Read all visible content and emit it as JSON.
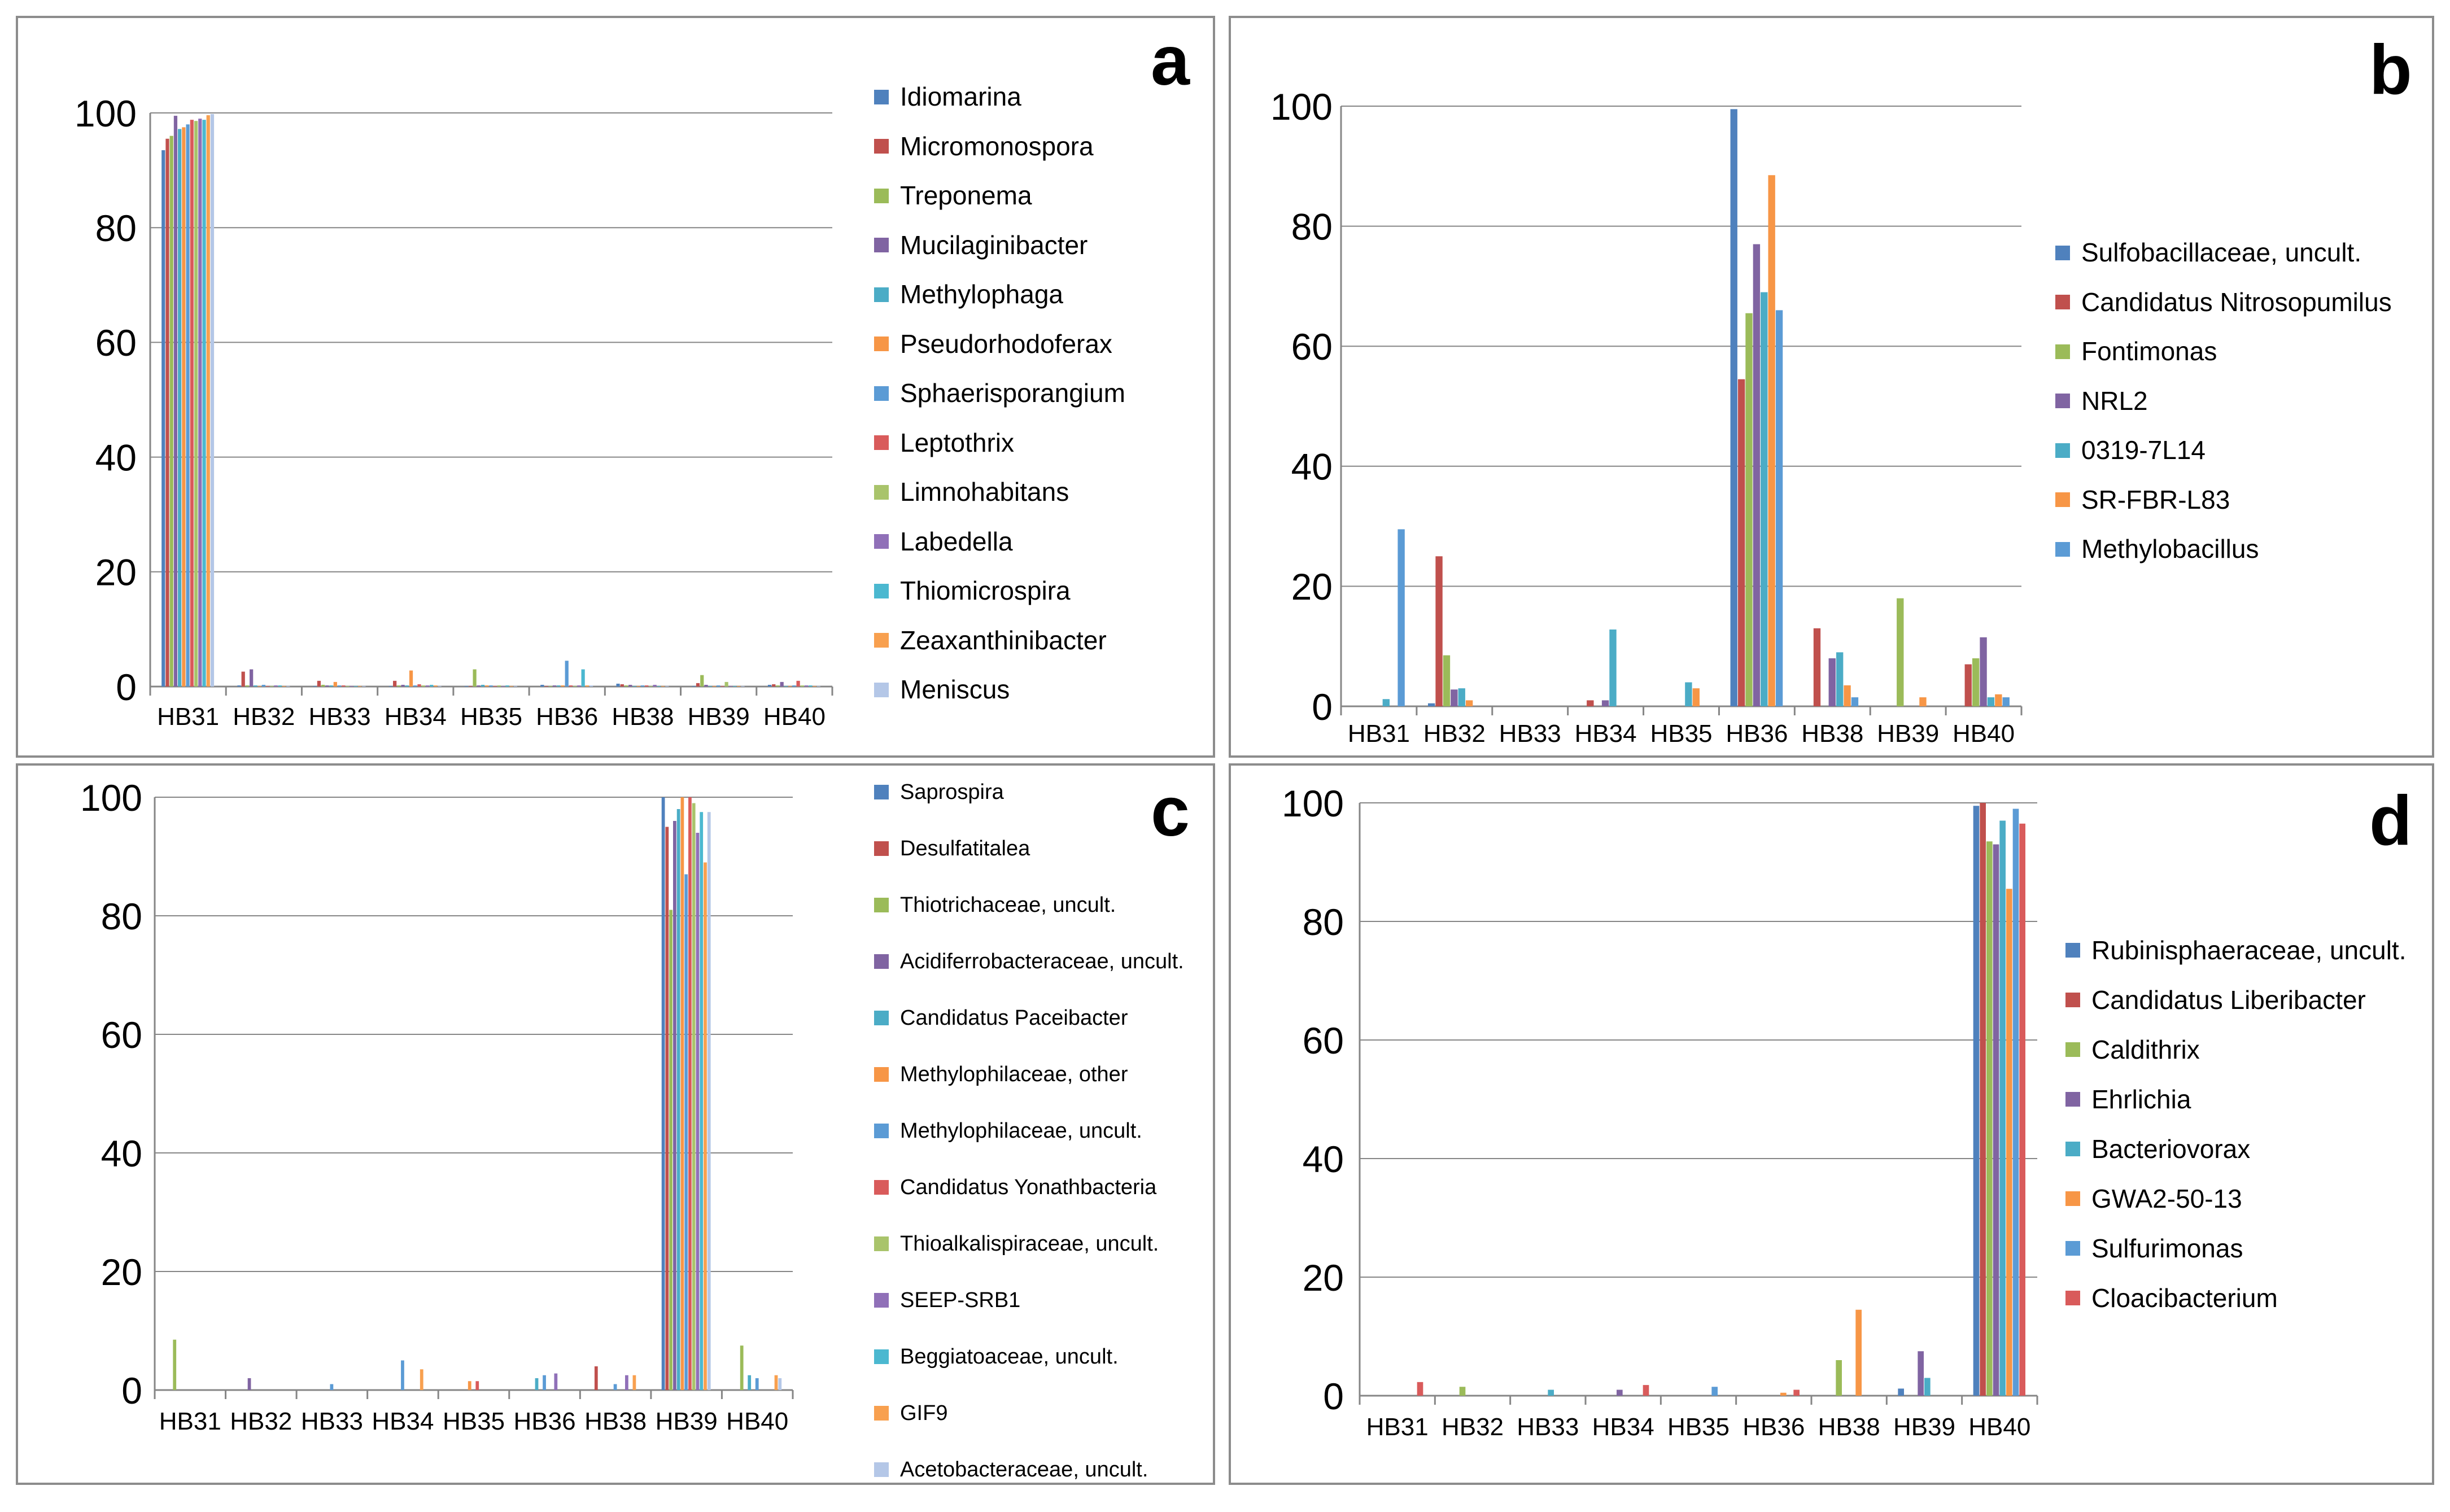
{
  "colors": [
    "#4F81BD",
    "#C0504D",
    "#9BBB59",
    "#8064A2",
    "#4BACC6",
    "#F79646",
    "#5B9BD5",
    "#D95B5B",
    "#A9C46B",
    "#9070B8",
    "#4BB8D0",
    "#F8A04F",
    "#B4C7E7",
    "#E6A6A6"
  ],
  "chart_data": [
    {
      "type": "bar",
      "panel_label": "a",
      "categories": [
        "HB31",
        "HB32",
        "HB33",
        "HB34",
        "HB35",
        "HB36",
        "HB38",
        "HB39",
        "HB40"
      ],
      "ylim": [
        0,
        100
      ],
      "yticks": [
        0,
        20,
        40,
        60,
        80,
        100
      ],
      "grid": true,
      "legend": "right",
      "series": [
        {
          "name": "Idiomarina",
          "values": [
            93.5,
            0.2,
            0.1,
            0.1,
            0.1,
            0.3,
            0.5,
            0.1,
            0.3
          ]
        },
        {
          "name": "Micromonospora",
          "values": [
            95.5,
            2.6,
            1.0,
            1.0,
            0.1,
            0.1,
            0.4,
            0.6,
            0.4
          ]
        },
        {
          "name": "Treponema",
          "values": [
            96,
            0.2,
            0.3,
            0.2,
            3.0,
            0.1,
            0.2,
            2.0,
            0.2
          ]
        },
        {
          "name": "Mucilaginibacter",
          "values": [
            99.5,
            3.0,
            0.2,
            0.3,
            0.2,
            0.2,
            0.3,
            0.3,
            0.8
          ]
        },
        {
          "name": "Methylophaga",
          "values": [
            97.2,
            0.2,
            0.2,
            0.2,
            0.3,
            0.2,
            0.1,
            0.1,
            0.1
          ]
        },
        {
          "name": "Pseudorhodoferax",
          "values": [
            97.5,
            0.1,
            0.8,
            2.8,
            0.2,
            0.2,
            0.1,
            0.1,
            0.1
          ]
        },
        {
          "name": "Sphaerisporangium",
          "values": [
            98,
            0.3,
            0.2,
            0.2,
            0.2,
            4.5,
            0.2,
            0.2,
            0.2
          ]
        },
        {
          "name": "Leptothrix",
          "values": [
            98.8,
            0.1,
            0.2,
            0.4,
            0.1,
            0.2,
            0.2,
            0.1,
            1.0
          ]
        },
        {
          "name": "Limnohabitans",
          "values": [
            98.6,
            0.1,
            0.1,
            0.2,
            0.2,
            0.1,
            0.1,
            0.8,
            0.2
          ]
        },
        {
          "name": "Labedella",
          "values": [
            99.0,
            0.2,
            0.1,
            0.2,
            0.1,
            0.2,
            0.3,
            0.1,
            0.2
          ]
        },
        {
          "name": "Thiomicrospira",
          "values": [
            98.8,
            0.2,
            0.1,
            0.3,
            0.2,
            3.0,
            0.1,
            0.1,
            0.2
          ]
        },
        {
          "name": "Zeaxanthinibacter",
          "values": [
            99.6,
            0.1,
            0.1,
            0.2,
            0.1,
            0.2,
            0.1,
            0.1,
            0.1
          ]
        },
        {
          "name": "Meniscus",
          "values": [
            99.8,
            0.1,
            0.1,
            0.1,
            0.1,
            0.2,
            0.1,
            0.1,
            0.1
          ]
        }
      ]
    },
    {
      "type": "bar",
      "panel_label": "b",
      "categories": [
        "HB31",
        "HB32",
        "HB33",
        "HB34",
        "HB35",
        "HB36",
        "HB38",
        "HB39",
        "HB40"
      ],
      "ylim": [
        0,
        100
      ],
      "yticks": [
        0,
        20,
        40,
        60,
        80,
        100
      ],
      "grid": true,
      "legend": "right",
      "series": [
        {
          "name": "Sulfobacillaceae, uncult.",
          "values": [
            0,
            0.5,
            0,
            0,
            0,
            99.5,
            0,
            0,
            0
          ]
        },
        {
          "name": "Candidatus Nitrosopumilus",
          "values": [
            0,
            25,
            0,
            1,
            0,
            54.5,
            13,
            0,
            7
          ]
        },
        {
          "name": "Fontimonas",
          "values": [
            0,
            8.5,
            0,
            0,
            0,
            65.5,
            0,
            18,
            8
          ]
        },
        {
          "name": "NRL2",
          "values": [
            0,
            2.8,
            0,
            1,
            0,
            77,
            8,
            0,
            11.5
          ]
        },
        {
          "name": "0319-7L14",
          "values": [
            1.2,
            3,
            0,
            12.8,
            4,
            69,
            9,
            0,
            1.5
          ]
        },
        {
          "name": "SR-FBR-L83",
          "values": [
            0,
            1,
            0,
            0,
            3,
            88.5,
            3.5,
            1.5,
            2
          ]
        },
        {
          "name": "Methylobacillus",
          "values": [
            29.5,
            0,
            0,
            0,
            0,
            66,
            1.5,
            0,
            1.5
          ]
        }
      ]
    },
    {
      "type": "bar",
      "panel_label": "c",
      "categories": [
        "HB31",
        "HB32",
        "HB33",
        "HB34",
        "HB35",
        "HB36",
        "HB38",
        "HB39",
        "HB40"
      ],
      "ylim": [
        0,
        100
      ],
      "yticks": [
        0,
        20,
        40,
        60,
        80,
        100
      ],
      "grid": true,
      "legend": "right",
      "series": [
        {
          "name": "Saprospira",
          "values": [
            0,
            0,
            0,
            0,
            0,
            0,
            0,
            100,
            0
          ]
        },
        {
          "name": "Desulfatitalea",
          "values": [
            0,
            0,
            0,
            0,
            0,
            0,
            4,
            95,
            0
          ]
        },
        {
          "name": "Thiotrichaceae, uncult.",
          "values": [
            8.5,
            0,
            0,
            0,
            0,
            0,
            0,
            81,
            7.5
          ]
        },
        {
          "name": "Acidiferrobacteraceae, uncult.",
          "values": [
            0,
            2,
            0,
            0,
            0,
            0,
            0,
            96,
            0
          ]
        },
        {
          "name": "Candidatus Paceibacter",
          "values": [
            0,
            0,
            0,
            0,
            0,
            2,
            0,
            98,
            2.5
          ]
        },
        {
          "name": "Methylophilaceae, other",
          "values": [
            0,
            0,
            0,
            0,
            1.5,
            0,
            0,
            100,
            0
          ]
        },
        {
          "name": "Methylophilaceae, uncult.",
          "values": [
            0,
            0,
            1,
            5,
            0,
            2.5,
            1,
            87,
            2
          ]
        },
        {
          "name": "Candidatus Yonathbacteria",
          "values": [
            0,
            0,
            0,
            0,
            1.5,
            0,
            0,
            100,
            0
          ]
        },
        {
          "name": "Thioalkalispiraceae, uncult.",
          "values": [
            0,
            0,
            0,
            0,
            0,
            0,
            0,
            99,
            0
          ]
        },
        {
          "name": "SEEP-SRB1",
          "values": [
            0,
            0,
            0,
            0,
            0,
            2.8,
            2.5,
            94,
            0
          ]
        },
        {
          "name": "Beggiatoaceae, uncult.",
          "values": [
            0,
            0,
            0,
            0,
            0,
            0,
            0,
            97.5,
            0
          ]
        },
        {
          "name": "GIF9",
          "values": [
            0,
            0,
            0,
            3.5,
            0,
            0,
            2.5,
            89,
            2.5
          ]
        },
        {
          "name": "Acetobacteraceae, uncult.",
          "values": [
            0,
            0,
            0,
            0,
            0,
            0,
            0,
            97.5,
            2
          ]
        }
      ]
    },
    {
      "type": "bar",
      "panel_label": "d",
      "categories": [
        "HB31",
        "HB32",
        "HB33",
        "HB34",
        "HB35",
        "HB36",
        "HB38",
        "HB39",
        "HB40"
      ],
      "ylim": [
        0,
        100
      ],
      "yticks": [
        0,
        20,
        40,
        60,
        80,
        100
      ],
      "grid": true,
      "legend": "right",
      "series": [
        {
          "name": "Rubinisphaeraceae, uncult.",
          "values": [
            0,
            0,
            0,
            0,
            0,
            0,
            0,
            1.2,
            99.5
          ]
        },
        {
          "name": "Candidatus Liberibacter",
          "values": [
            0,
            0,
            0,
            0,
            0,
            0,
            0,
            0,
            100
          ]
        },
        {
          "name": "Caldithrix",
          "values": [
            0,
            1.5,
            0,
            0,
            0,
            0,
            6,
            0,
            93.5
          ]
        },
        {
          "name": "Ehrlichia",
          "values": [
            0,
            0,
            0,
            1,
            0,
            0,
            0,
            7.5,
            93
          ]
        },
        {
          "name": "Bacteriovorax",
          "values": [
            0,
            0,
            1,
            0,
            0,
            0,
            0,
            3,
            97
          ]
        },
        {
          "name": "GWA2-50-13",
          "values": [
            0,
            0,
            0,
            0,
            0,
            0.5,
            14.5,
            0,
            85.5
          ]
        },
        {
          "name": "Sulfurimonas",
          "values": [
            0,
            0,
            0,
            0,
            1.5,
            0,
            0,
            0,
            99
          ]
        },
        {
          "name": "Cloacibacterium",
          "values": [
            2.3,
            0,
            0,
            1.8,
            0,
            1,
            0,
            0,
            96.5
          ]
        }
      ]
    }
  ]
}
